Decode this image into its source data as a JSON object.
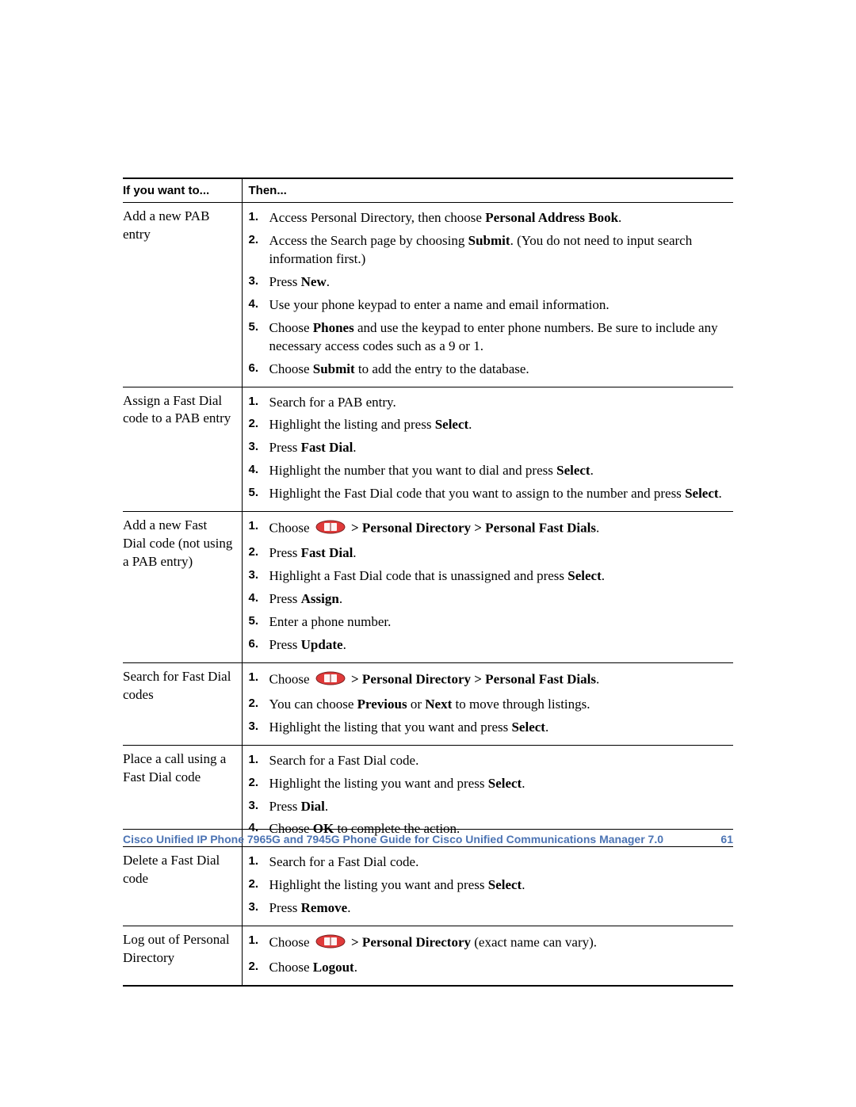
{
  "headers": {
    "col1": "If you want to...",
    "col2": "Then..."
  },
  "icon_color": "#e03a3a",
  "rows": [
    {
      "task": "Add a new PAB entry",
      "steps": [
        [
          {
            "t": "Access Personal Directory, then choose "
          },
          {
            "t": "Personal Address Book",
            "b": true
          },
          {
            "t": "."
          }
        ],
        [
          {
            "t": "Access the Search page by choosing "
          },
          {
            "t": "Submit",
            "b": true
          },
          {
            "t": ". (You do not need to input search information first.)"
          }
        ],
        [
          {
            "t": "Press "
          },
          {
            "t": "New",
            "b": true
          },
          {
            "t": "."
          }
        ],
        [
          {
            "t": "Use your phone keypad to enter a name and email information."
          }
        ],
        [
          {
            "t": "Choose "
          },
          {
            "t": "Phones",
            "b": true
          },
          {
            "t": " and use the keypad to enter phone numbers. Be sure to include any necessary access codes such as a 9 or 1."
          }
        ],
        [
          {
            "t": "Choose "
          },
          {
            "t": "Submit",
            "b": true
          },
          {
            "t": " to add the entry to the database."
          }
        ]
      ]
    },
    {
      "task": "Assign a Fast Dial code to a PAB entry",
      "steps": [
        [
          {
            "t": "Search for a PAB entry."
          }
        ],
        [
          {
            "t": "Highlight the listing and press "
          },
          {
            "t": "Select",
            "b": true
          },
          {
            "t": "."
          }
        ],
        [
          {
            "t": "Press "
          },
          {
            "t": "Fast Dial",
            "b": true
          },
          {
            "t": "."
          }
        ],
        [
          {
            "t": "Highlight the number that you want to dial and press "
          },
          {
            "t": "Select",
            "b": true
          },
          {
            "t": "."
          }
        ],
        [
          {
            "t": "Highlight the Fast Dial code that you want to assign to the number and press "
          },
          {
            "t": "Select",
            "b": true
          },
          {
            "t": "."
          }
        ]
      ]
    },
    {
      "task": "Add a new Fast Dial code (not using a PAB entry)",
      "steps": [
        [
          {
            "t": "Choose "
          },
          {
            "icon": true
          },
          {
            "t": " "
          },
          {
            "t": "> Personal Directory > Personal Fast Dials",
            "b": true
          },
          {
            "t": "."
          }
        ],
        [
          {
            "t": "Press "
          },
          {
            "t": "Fast Dial",
            "b": true
          },
          {
            "t": "."
          }
        ],
        [
          {
            "t": "Highlight a Fast Dial code that is unassigned and press "
          },
          {
            "t": "Select",
            "b": true
          },
          {
            "t": "."
          }
        ],
        [
          {
            "t": "Press "
          },
          {
            "t": "Assign",
            "b": true
          },
          {
            "t": "."
          }
        ],
        [
          {
            "t": "Enter a phone number."
          }
        ],
        [
          {
            "t": "Press "
          },
          {
            "t": "Update",
            "b": true
          },
          {
            "t": "."
          }
        ]
      ]
    },
    {
      "task": "Search for Fast Dial codes",
      "steps": [
        [
          {
            "t": "Choose "
          },
          {
            "icon": true
          },
          {
            "t": " "
          },
          {
            "t": "> Personal Directory > Personal Fast Dials",
            "b": true
          },
          {
            "t": "."
          }
        ],
        [
          {
            "t": "You can choose "
          },
          {
            "t": "Previous",
            "b": true
          },
          {
            "t": " or "
          },
          {
            "t": "Next",
            "b": true
          },
          {
            "t": " to move through listings."
          }
        ],
        [
          {
            "t": "Highlight the listing that you want and press "
          },
          {
            "t": "Select",
            "b": true
          },
          {
            "t": "."
          }
        ]
      ]
    },
    {
      "task": "Place a call using a Fast Dial code",
      "steps": [
        [
          {
            "t": "Search for a Fast Dial code."
          }
        ],
        [
          {
            "t": "Highlight the listing you want and press "
          },
          {
            "t": "Select",
            "b": true
          },
          {
            "t": "."
          }
        ],
        [
          {
            "t": "Press "
          },
          {
            "t": "Dial",
            "b": true
          },
          {
            "t": "."
          }
        ],
        [
          {
            "t": "Choose "
          },
          {
            "t": "OK",
            "b": true
          },
          {
            "t": " to complete the action."
          }
        ]
      ]
    },
    {
      "task": "Delete a Fast Dial code",
      "steps": [
        [
          {
            "t": "Search for a Fast Dial code."
          }
        ],
        [
          {
            "t": "Highlight the listing you want and press "
          },
          {
            "t": "Select",
            "b": true
          },
          {
            "t": "."
          }
        ],
        [
          {
            "t": "Press "
          },
          {
            "t": "Remove",
            "b": true
          },
          {
            "t": "."
          }
        ]
      ]
    },
    {
      "task": "Log out of Personal Directory",
      "steps": [
        [
          {
            "t": "Choose "
          },
          {
            "icon": true
          },
          {
            "t": " "
          },
          {
            "t": "> Personal Directory",
            "b": true
          },
          {
            "t": " (exact name can vary)."
          }
        ],
        [
          {
            "t": "Choose "
          },
          {
            "t": "Logout",
            "b": true
          },
          {
            "t": "."
          }
        ]
      ]
    }
  ],
  "footer": {
    "title": "Cisco Unified IP Phone 7965G and 7945G Phone Guide for Cisco Unified Communications Manager 7.0",
    "page": "61",
    "color": "#4c74b4"
  }
}
